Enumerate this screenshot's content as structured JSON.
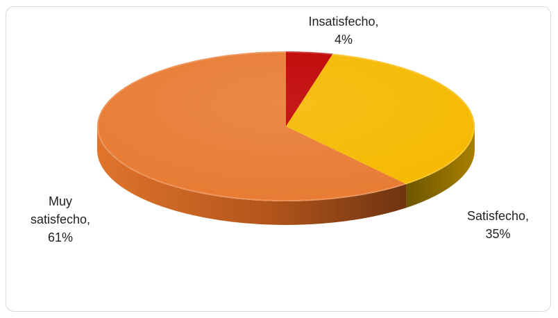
{
  "chart_data": {
    "type": "pie",
    "title": "",
    "style": "3d",
    "slices": [
      {
        "label": "Insatisfecho",
        "value": 4,
        "value_label": "4%",
        "color": "#c00000"
      },
      {
        "label": "Satisfecho",
        "value": 35,
        "value_label": "35%",
        "color": "#f6b900"
      },
      {
        "label": "Muy satisfecho",
        "value": 61,
        "value_label": "61%",
        "color": "#e87b33"
      }
    ],
    "legend": "none",
    "data_labels": "outside"
  },
  "labels": {
    "insatisfecho_line1": "Insatisfecho,",
    "insatisfecho_line2": "4%",
    "satisfecho_line1": "Satisfecho,",
    "satisfecho_line2": "35%",
    "muy_line1": "Muy",
    "muy_line2": "satisfecho,",
    "muy_line3": "61%"
  }
}
